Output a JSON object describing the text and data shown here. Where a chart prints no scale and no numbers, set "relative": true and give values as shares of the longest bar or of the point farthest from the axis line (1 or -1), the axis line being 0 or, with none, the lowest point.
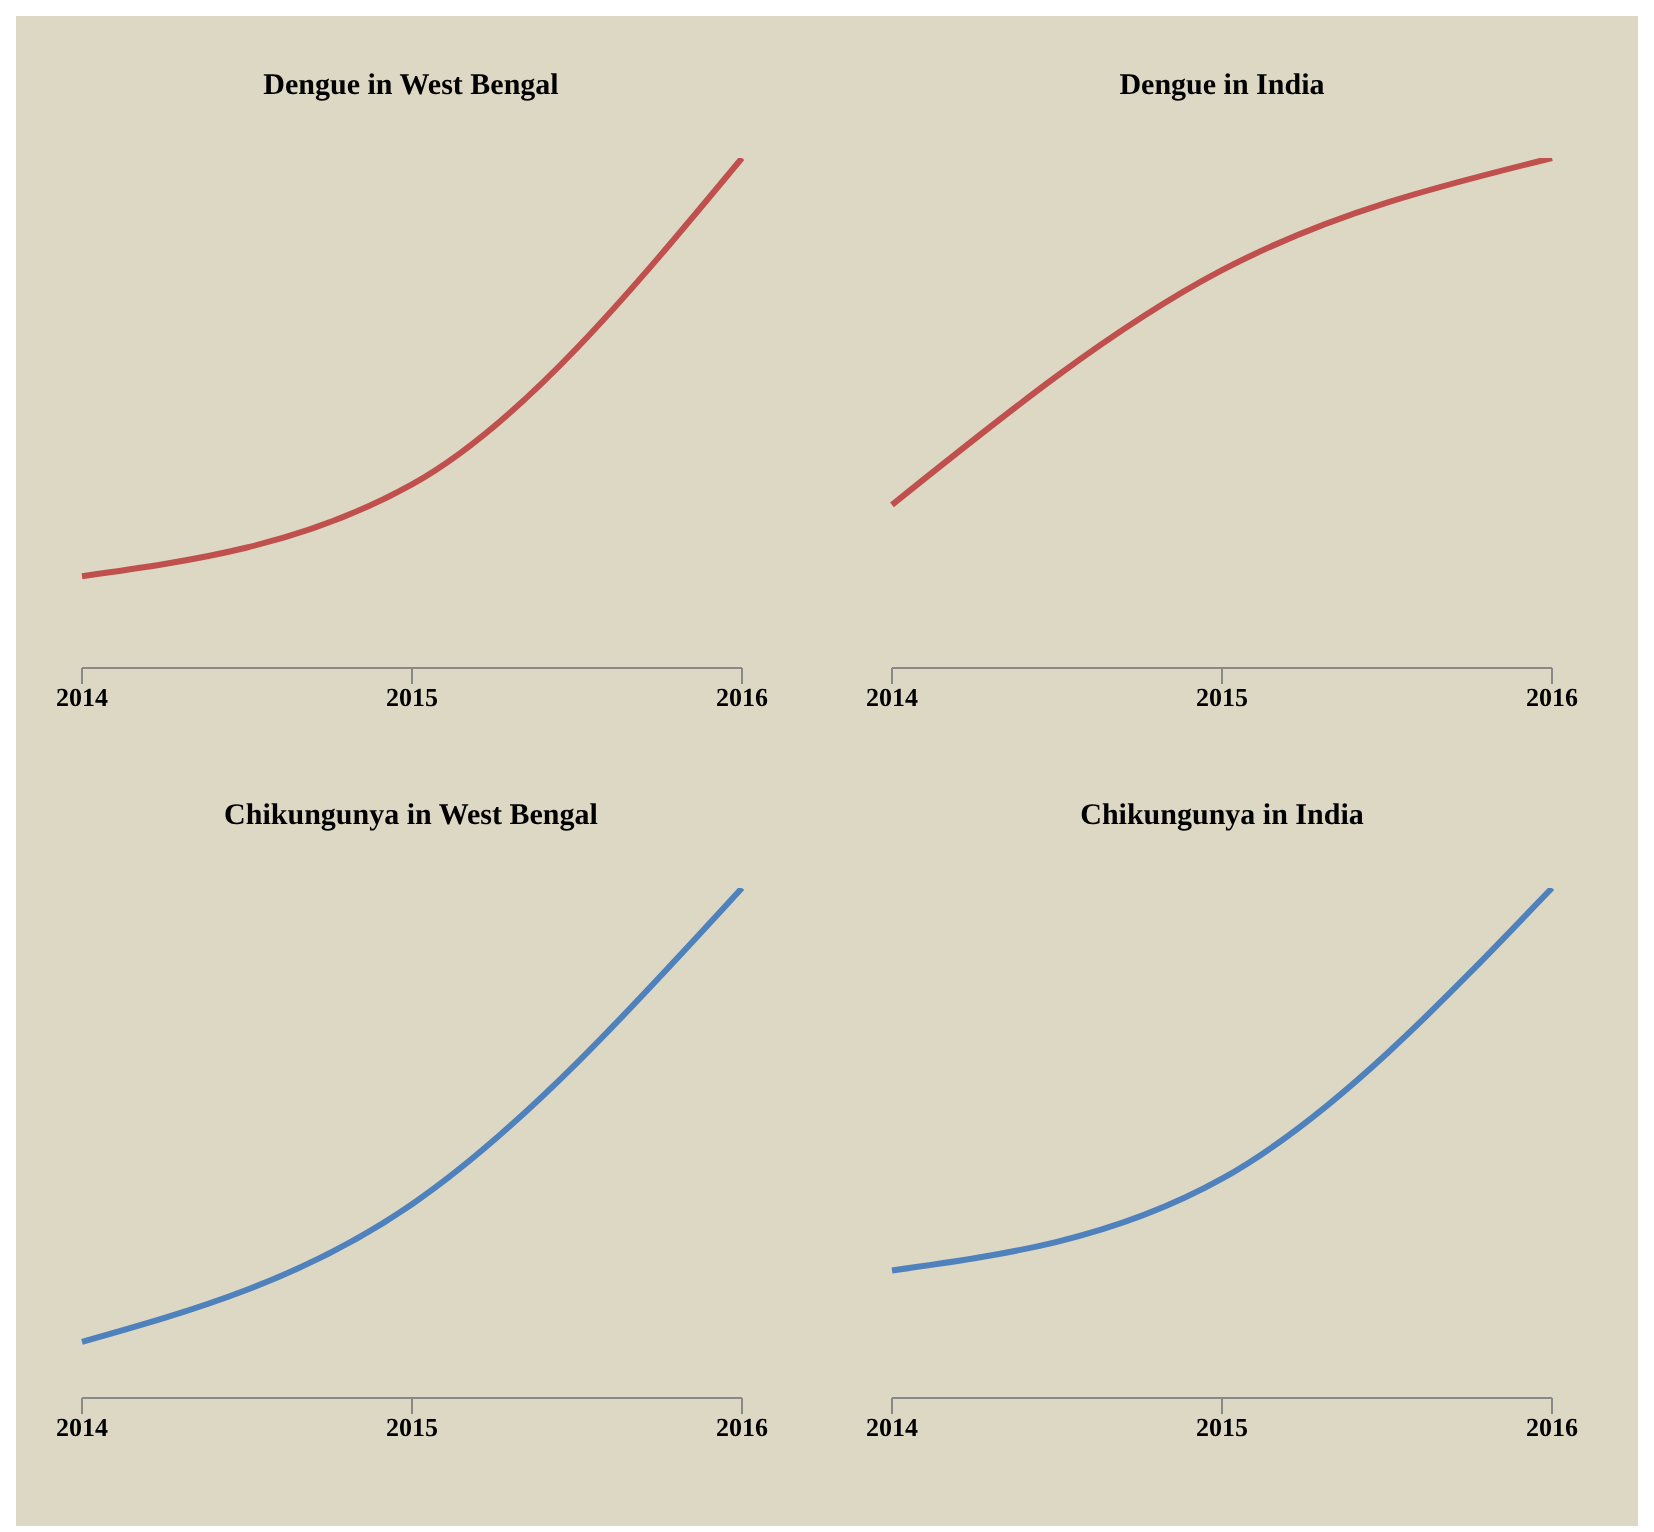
{
  "chart_data": [
    {
      "type": "line",
      "title": "Dengue in West Bengal",
      "categories": [
        "2014",
        "2015",
        "2016"
      ],
      "values": [
        0.18,
        0.36,
        1
      ],
      "color": "#c0504d",
      "relative": true,
      "marker": "none"
    },
    {
      "type": "line",
      "title": "Dengue in India",
      "categories": [
        "2014",
        "2015",
        "2016"
      ],
      "values": [
        0.32,
        0.78,
        1
      ],
      "color": "#c0504d",
      "relative": true,
      "marker": "none"
    },
    {
      "type": "line",
      "title": "Chikungunya in West Bengal",
      "categories": [
        "2014",
        "2015",
        "2016"
      ],
      "values": [
        0.11,
        0.38,
        1
      ],
      "color": "#4f81bd",
      "relative": true,
      "marker": "none"
    },
    {
      "type": "line",
      "title": "Chikungunya in India",
      "categories": [
        "2014",
        "2015",
        "2016"
      ],
      "values": [
        0.25,
        0.43,
        1
      ],
      "color": "#4f81bd",
      "relative": true,
      "marker": "none"
    }
  ]
}
